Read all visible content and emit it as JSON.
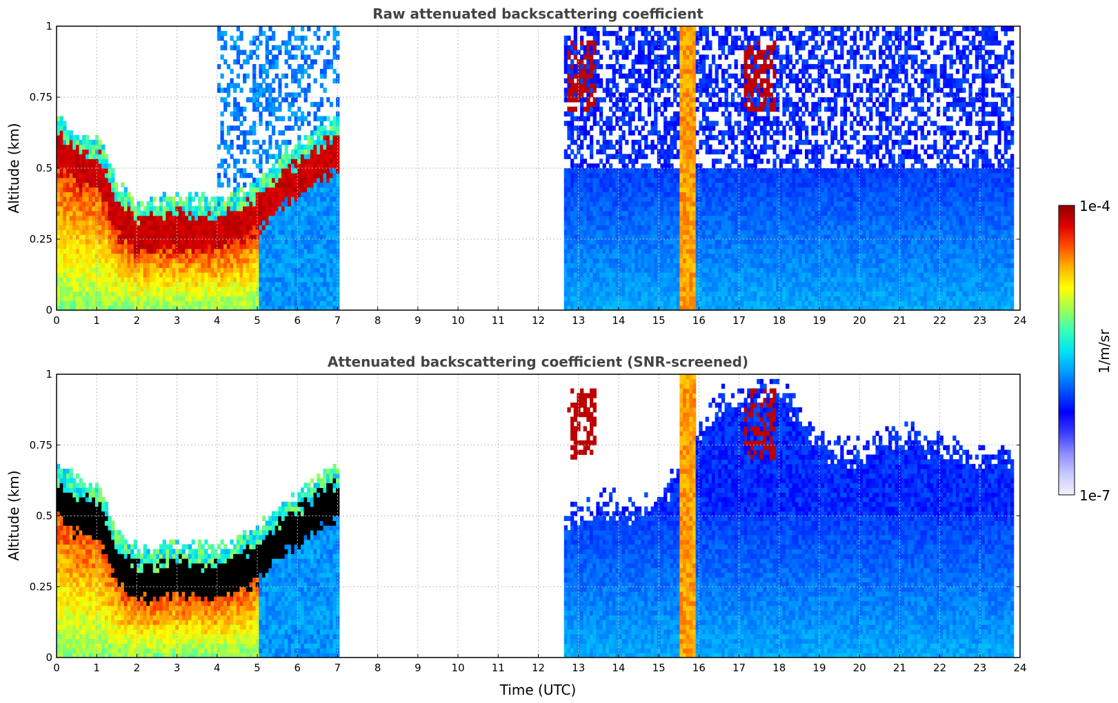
{
  "chart_data": [
    {
      "type": "heatmap",
      "title": "Raw attenuated backscattering coefficient",
      "xlabel": "",
      "ylabel": "Altitude (km)",
      "xlim": [
        0,
        24
      ],
      "ylim": [
        0,
        1
      ],
      "x_ticks": [
        "0",
        "1",
        "2",
        "3",
        "4",
        "5",
        "6",
        "7",
        "8",
        "9",
        "10",
        "11",
        "12",
        "13",
        "14",
        "15",
        "16",
        "17",
        "18",
        "19",
        "20",
        "21",
        "22",
        "23",
        "24"
      ],
      "y_ticks": [
        "0",
        "0.25",
        "0.5",
        "0.75",
        "1"
      ],
      "grid": true,
      "data_gap_utc": [
        7.0,
        12.6
      ],
      "data_end_utc": 23.8,
      "boundary_layer_top_km": [
        {
          "t": 0,
          "z": 0.62
        },
        {
          "t": 0.5,
          "z": 0.56
        },
        {
          "t": 1,
          "z": 0.55
        },
        {
          "t": 1.5,
          "z": 0.38
        },
        {
          "t": 2,
          "z": 0.32
        },
        {
          "t": 2.5,
          "z": 0.33
        },
        {
          "t": 3,
          "z": 0.34
        },
        {
          "t": 3.5,
          "z": 0.33
        },
        {
          "t": 4,
          "z": 0.33
        },
        {
          "t": 4.5,
          "z": 0.36
        },
        {
          "t": 5,
          "z": 0.4
        },
        {
          "t": 5.5,
          "z": 0.48
        },
        {
          "t": 6,
          "z": 0.52
        },
        {
          "t": 6.5,
          "z": 0.58
        },
        {
          "t": 7,
          "z": 0.62
        }
      ],
      "notes_peaks": [
        {
          "t_start": 15.5,
          "t_end": 15.9,
          "z_top": 1.0,
          "level": "high"
        },
        {
          "t_start": 12.7,
          "t_end": 13.4,
          "z_low": 0.7,
          "z_high": 0.95,
          "level": "max"
        },
        {
          "t_start": 17.1,
          "t_end": 17.9,
          "z_low": 0.7,
          "z_high": 0.95,
          "level": "max"
        }
      ]
    },
    {
      "type": "heatmap",
      "title": "Attenuated backscattering coefficient (SNR-screened)",
      "xlabel": "Time (UTC)",
      "ylabel": "Altitude (km)",
      "xlim": [
        0,
        24
      ],
      "ylim": [
        0,
        1
      ],
      "x_ticks": [
        "0",
        "1",
        "2",
        "3",
        "4",
        "5",
        "6",
        "7",
        "8",
        "9",
        "10",
        "11",
        "12",
        "13",
        "14",
        "15",
        "16",
        "17",
        "18",
        "19",
        "20",
        "21",
        "22",
        "23",
        "24"
      ],
      "y_ticks": [
        "0",
        "0.25",
        "0.5",
        "0.75",
        "1"
      ],
      "grid": true,
      "saturated_color": "#000000",
      "screened_top_km": [
        {
          "t": 12.6,
          "z": 0.48
        },
        {
          "t": 13.5,
          "z": 0.55
        },
        {
          "t": 14.5,
          "z": 0.52
        },
        {
          "t": 15.2,
          "z": 0.6
        },
        {
          "t": 16.5,
          "z": 0.9
        },
        {
          "t": 18,
          "z": 0.95
        },
        {
          "t": 19,
          "z": 0.75
        },
        {
          "t": 20,
          "z": 0.72
        },
        {
          "t": 21,
          "z": 0.8
        },
        {
          "t": 22,
          "z": 0.75
        },
        {
          "t": 23,
          "z": 0.7
        },
        {
          "t": 23.8,
          "z": 0.72
        }
      ]
    }
  ],
  "colorbar": {
    "label": "1/m/sr",
    "max_label": "1e-4",
    "min_label": "1e-7",
    "scale": "log",
    "colormap": [
      "#f2f2ff",
      "#c8c8ff",
      "#8c8cff",
      "#3c3cff",
      "#0000ff",
      "#0050ff",
      "#00a0ff",
      "#00e6f0",
      "#3cffb4",
      "#a0ff50",
      "#ffff00",
      "#ffb400",
      "#ff5000",
      "#e00000",
      "#900000"
    ]
  }
}
